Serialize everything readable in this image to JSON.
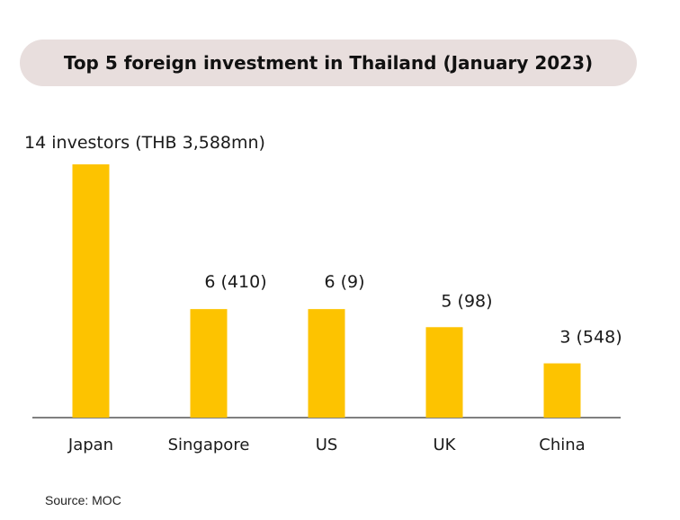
{
  "chart_data": {
    "type": "bar",
    "title": "Top 5 foreign investment in Thailand (January 2023)",
    "categories": [
      "Japan",
      "Singapore",
      "US",
      "UK",
      "China"
    ],
    "values": [
      14,
      6,
      6,
      5,
      3
    ],
    "data_labels": [
      "14 investors (THB 3,588mn)",
      "6 (410)",
      "6 (9)",
      "5 (98)",
      "3 (548)"
    ],
    "ylim": [
      0,
      14
    ],
    "grid": false,
    "colors": {
      "bar": "#FDC300",
      "axis": "#555555"
    }
  },
  "source": "Source: MOC"
}
